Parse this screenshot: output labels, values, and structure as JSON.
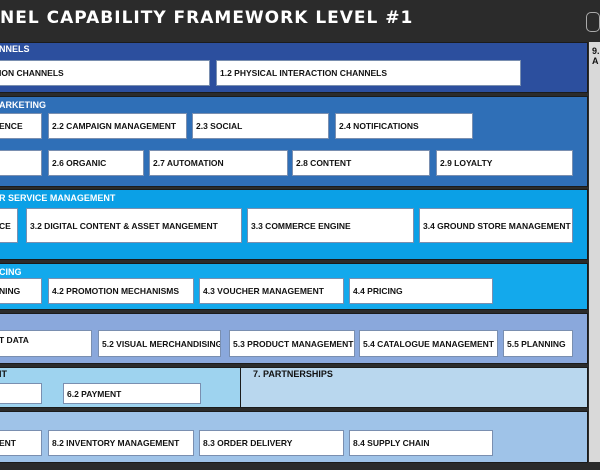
{
  "header": {
    "title": "NEL CAPABILITY FRAMEWORK LEVEL #1",
    "logo": "seal-logo"
  },
  "sections": [
    {
      "title": "NNELS",
      "color": "#2c4f9e",
      "boxes": [
        "ION CHANNELS",
        "1.2  PHYSICAL INTERACTION CHANNELS"
      ]
    },
    {
      "title": "ARKETING",
      "color": "#2f6fb7",
      "boxes": [
        "ENCE",
        "2.2 CAMPAIGN MANAGEMENT",
        "2.3 SOCIAL",
        "2.4 NOTIFICATIONS",
        "",
        "2.6 ORGANIC",
        "2.7 AUTOMATION",
        "2.8 CONTENT",
        "2.9 LOYALTY"
      ]
    },
    {
      "title": "R SERVICE MANAGEMENT",
      "color": "#0ba0e6",
      "boxes": [
        "CE",
        "3.2 DIGITAL CONTENT & ASSET MANGEMENT",
        "3.3 COMMERCE ENGINE",
        "3.4 GROUND STORE MANAGEMENT"
      ]
    },
    {
      "title": "CING",
      "color": "#13a9ec",
      "boxes": [
        "NING",
        "4.2 PROMOTION MECHANISMS",
        "4.3 VOUCHER MANAGEMENT",
        "4.4 PRICING"
      ]
    },
    {
      "title": "",
      "color": "#8aa8dc",
      "boxes": [
        "T DATA",
        "5.2 VISUAL MERCHANDISING",
        "5.3 PRODUCT MANAGEMENT",
        "5.4 CATALOGUE MANAGEMENT",
        "5.5 PLANNING"
      ]
    },
    {
      "title": "IT",
      "color": "#9ed3ef",
      "boxes": [
        "",
        "6.2 PAYMENT"
      ]
    },
    {
      "title": "7. PARTNERSHIPS",
      "color": "#b9d7ee",
      "boxes": []
    },
    {
      "title": "",
      "color": "#9fc3e8",
      "boxes": [
        "ENT",
        "8.2 INVENTORY MANAGEMENT",
        "8.3 ORDER DELIVERY",
        "8.4 SUPPLY CHAIN"
      ]
    }
  ],
  "side": {
    "line1": "9.",
    "line2": "A"
  }
}
